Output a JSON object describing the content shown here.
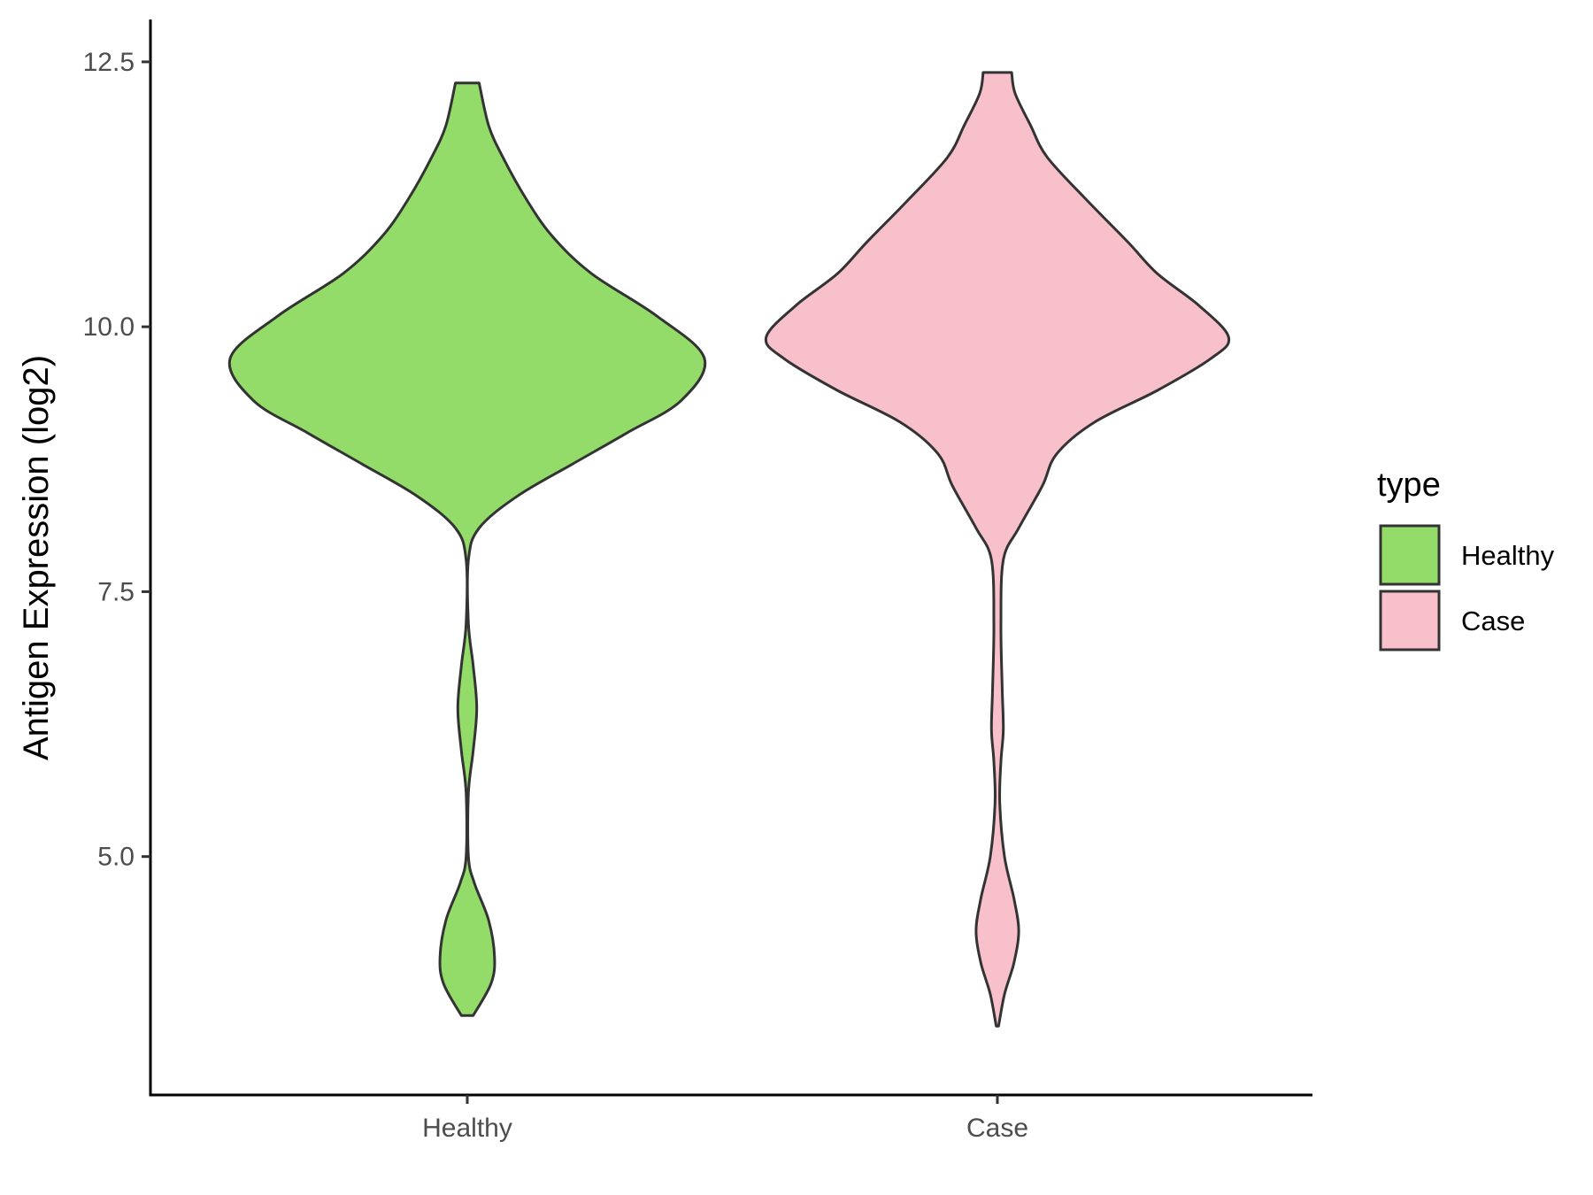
{
  "chart_data": {
    "type": "violin",
    "ylabel": "Antigen Expression (log2)",
    "ylim": [
      2.75,
      12.9
    ],
    "yticks": [
      "5.0",
      "7.5",
      "10.0",
      "12.5"
    ],
    "categories": [
      "Healthy",
      "Case"
    ],
    "grid": false,
    "legend": {
      "title": "type",
      "position": "right",
      "entries": [
        "Healthy",
        "Case"
      ]
    },
    "series": [
      {
        "name": "Healthy",
        "color": "#93dc6a",
        "range": [
          3.5,
          12.3
        ],
        "density": [
          [
            3.5,
            0.05
          ],
          [
            3.8,
            0.2
          ],
          [
            4.05,
            0.23
          ],
          [
            4.4,
            0.18
          ],
          [
            4.75,
            0.06
          ],
          [
            5.0,
            0.01
          ],
          [
            5.6,
            0.01
          ],
          [
            6.0,
            0.05
          ],
          [
            6.4,
            0.08
          ],
          [
            6.8,
            0.05
          ],
          [
            7.2,
            0.01
          ],
          [
            7.8,
            0.01
          ],
          [
            8.1,
            0.1
          ],
          [
            8.4,
            0.42
          ],
          [
            8.7,
            0.88
          ],
          [
            9.0,
            1.35
          ],
          [
            9.3,
            1.8
          ],
          [
            9.7,
            2.0
          ],
          [
            10.1,
            1.6
          ],
          [
            10.5,
            1.05
          ],
          [
            10.85,
            0.72
          ],
          [
            11.2,
            0.5
          ],
          [
            11.6,
            0.3
          ],
          [
            11.9,
            0.18
          ],
          [
            12.3,
            0.1
          ]
        ]
      },
      {
        "name": "Case",
        "color": "#f8c0cb",
        "range": [
          3.4,
          12.4
        ],
        "density": [
          [
            3.4,
            0.01
          ],
          [
            3.7,
            0.06
          ],
          [
            4.0,
            0.14
          ],
          [
            4.3,
            0.18
          ],
          [
            4.6,
            0.14
          ],
          [
            5.0,
            0.06
          ],
          [
            5.5,
            0.02
          ],
          [
            5.9,
            0.03
          ],
          [
            6.2,
            0.05
          ],
          [
            6.6,
            0.04
          ],
          [
            7.2,
            0.03
          ],
          [
            7.8,
            0.05
          ],
          [
            8.1,
            0.18
          ],
          [
            8.5,
            0.38
          ],
          [
            8.8,
            0.5
          ],
          [
            9.1,
            0.82
          ],
          [
            9.4,
            1.35
          ],
          [
            9.7,
            1.8
          ],
          [
            9.9,
            1.95
          ],
          [
            10.2,
            1.7
          ],
          [
            10.5,
            1.35
          ],
          [
            10.8,
            1.1
          ],
          [
            11.2,
            0.75
          ],
          [
            11.6,
            0.42
          ],
          [
            11.9,
            0.28
          ],
          [
            12.2,
            0.15
          ],
          [
            12.4,
            0.12
          ]
        ]
      }
    ]
  }
}
